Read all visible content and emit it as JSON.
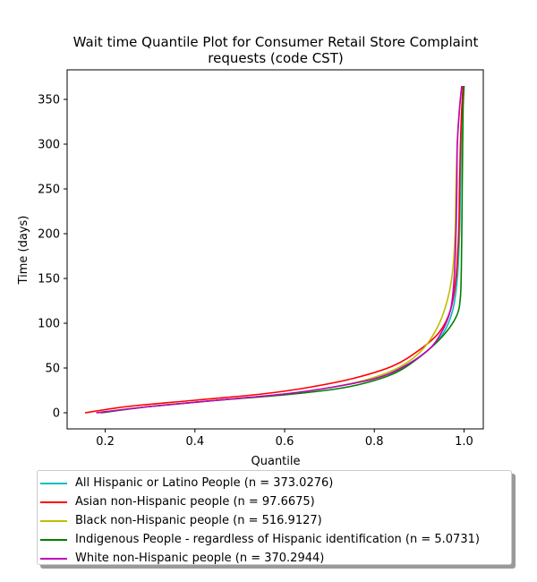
{
  "chart_data": {
    "type": "line",
    "title": "Wait time Quantile Plot for Consumer Retail Store Complaint requests (code CST)",
    "title_lines": [
      "Wait time Quantile Plot for Consumer Retail Store Complaint",
      "requests (code CST)"
    ],
    "xlabel": "Quantile",
    "ylabel": "Time (days)",
    "xlim": [
      0.115,
      1.043
    ],
    "ylim": [
      -18,
      383
    ],
    "xticks": [
      0.2,
      0.4,
      0.6,
      0.8,
      1.0
    ],
    "xtick_labels": [
      "0.2",
      "0.4",
      "0.6",
      "0.8",
      "1.0"
    ],
    "yticks": [
      0,
      50,
      100,
      150,
      200,
      250,
      300,
      350
    ],
    "ytick_labels": [
      "0",
      "50",
      "100",
      "150",
      "200",
      "250",
      "300",
      "350"
    ],
    "grid": false,
    "legend_position": "below",
    "series": [
      {
        "name": "All Hispanic or Latino People (n = 373.0276)",
        "color": "#00bfbf",
        "points": [
          [
            0.19,
            0
          ],
          [
            0.3,
            7
          ],
          [
            0.45,
            14
          ],
          [
            0.6,
            21
          ],
          [
            0.7,
            28
          ],
          [
            0.8,
            38
          ],
          [
            0.86,
            50
          ],
          [
            0.92,
            70
          ],
          [
            0.955,
            90
          ],
          [
            0.975,
            115
          ],
          [
            0.985,
            150
          ],
          [
            0.99,
            200
          ],
          [
            0.992,
            250
          ],
          [
            0.994,
            300
          ],
          [
            0.997,
            340
          ],
          [
            1.0,
            365
          ]
        ]
      },
      {
        "name": "Asian non-Hispanic people (n = 97.6675)",
        "color": "#ff0000",
        "points": [
          [
            0.155,
            0
          ],
          [
            0.25,
            7
          ],
          [
            0.4,
            14
          ],
          [
            0.55,
            21
          ],
          [
            0.65,
            28
          ],
          [
            0.75,
            38
          ],
          [
            0.84,
            52
          ],
          [
            0.9,
            70
          ],
          [
            0.945,
            90
          ],
          [
            0.97,
            115
          ],
          [
            0.982,
            150
          ],
          [
            0.988,
            200
          ],
          [
            0.99,
            250
          ],
          [
            0.992,
            300
          ],
          [
            0.995,
            340
          ],
          [
            0.998,
            365
          ]
        ]
      },
      {
        "name": "Black non-Hispanic people (n = 516.9127)",
        "color": "#bfbf00",
        "points": [
          [
            0.18,
            0
          ],
          [
            0.3,
            7
          ],
          [
            0.45,
            14
          ],
          [
            0.6,
            21
          ],
          [
            0.7,
            28
          ],
          [
            0.79,
            38
          ],
          [
            0.86,
            52
          ],
          [
            0.91,
            72
          ],
          [
            0.945,
            100
          ],
          [
            0.965,
            130
          ],
          [
            0.975,
            160
          ],
          [
            0.98,
            200
          ],
          [
            0.982,
            250
          ],
          [
            0.985,
            300
          ],
          [
            0.99,
            340
          ],
          [
            0.995,
            365
          ]
        ]
      },
      {
        "name": "Indigenous People - regardless of Hispanic identification (n = 5.0731)",
        "color": "#008000",
        "points": [
          [
            0.19,
            0
          ],
          [
            0.3,
            7
          ],
          [
            0.45,
            14
          ],
          [
            0.6,
            20
          ],
          [
            0.72,
            27
          ],
          [
            0.8,
            36
          ],
          [
            0.86,
            48
          ],
          [
            0.92,
            70
          ],
          [
            0.96,
            90
          ],
          [
            0.985,
            110
          ],
          [
            0.992,
            130
          ],
          [
            0.994,
            160
          ],
          [
            0.995,
            200
          ],
          [
            0.996,
            250
          ],
          [
            0.997,
            300
          ],
          [
            0.998,
            340
          ],
          [
            1.0,
            365
          ]
        ]
      },
      {
        "name": "White non-Hispanic people (n = 370.2944)",
        "color": "#bf00bf",
        "points": [
          [
            0.18,
            0
          ],
          [
            0.3,
            7
          ],
          [
            0.45,
            14
          ],
          [
            0.6,
            21
          ],
          [
            0.7,
            28
          ],
          [
            0.8,
            38
          ],
          [
            0.86,
            50
          ],
          [
            0.92,
            70
          ],
          [
            0.95,
            90
          ],
          [
            0.97,
            115
          ],
          [
            0.978,
            150
          ],
          [
            0.982,
            200
          ],
          [
            0.984,
            250
          ],
          [
            0.985,
            300
          ],
          [
            0.99,
            340
          ],
          [
            0.995,
            365
          ]
        ]
      }
    ]
  }
}
